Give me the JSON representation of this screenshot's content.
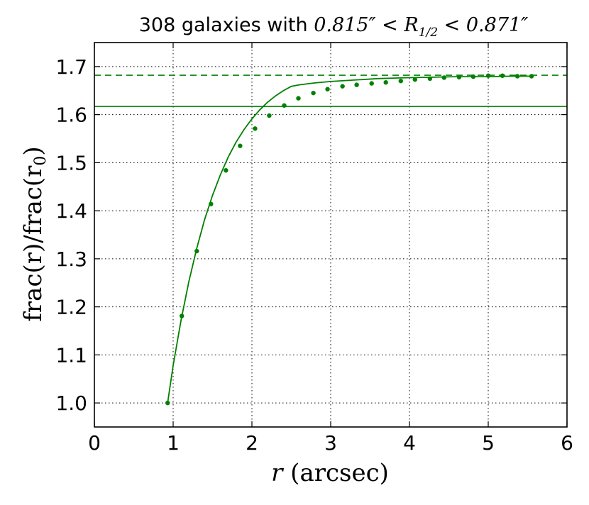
{
  "chart_data": {
    "type": "line",
    "title": {
      "prefix": "308 galaxies with ",
      "lower": "0.815″",
      "lt": " < ",
      "var_main": "R",
      "var_sub": "1/2",
      "upper": "0.871″"
    },
    "xlabel": {
      "var": "r",
      "text": " (arcsec)"
    },
    "ylabel": {
      "text": "frac(r)/frac(r",
      "sub": "0",
      "close": ")"
    },
    "xlim": [
      0,
      6
    ],
    "ylim": [
      0.95,
      1.75
    ],
    "xticks": [
      0,
      1,
      2,
      3,
      4,
      5,
      6
    ],
    "xtick_labels": [
      "0",
      "1",
      "2",
      "3",
      "4",
      "5",
      "6"
    ],
    "yticks": [
      1.0,
      1.1,
      1.2,
      1.3,
      1.4,
      1.5,
      1.6,
      1.7
    ],
    "ytick_labels": [
      "1.0",
      "1.1",
      "1.2",
      "1.3",
      "1.4",
      "1.5",
      "1.6",
      "1.7"
    ],
    "grid": true,
    "color": "#008000",
    "points": {
      "x": [
        0.93,
        1.11,
        1.3,
        1.48,
        1.67,
        1.85,
        2.04,
        2.22,
        2.41,
        2.59,
        2.78,
        2.96,
        3.15,
        3.33,
        3.52,
        3.7,
        3.89,
        4.07,
        4.26,
        4.44,
        4.63,
        4.81,
        5.0,
        5.18,
        5.37,
        5.55
      ],
      "y": [
        1.0,
        1.181,
        1.316,
        1.414,
        1.484,
        1.535,
        1.571,
        1.598,
        1.619,
        1.634,
        1.645,
        1.653,
        1.659,
        1.662,
        1.665,
        1.667,
        1.67,
        1.673,
        1.675,
        1.677,
        1.678,
        1.679,
        1.681,
        1.681,
        1.68,
        1.68
      ],
      "yerr": [
        0,
        0.002,
        0.002,
        0.002,
        0.002,
        0.002,
        0.002,
        0.002,
        0.002,
        0.003,
        0.003,
        0.003,
        0.003,
        0.003,
        0.003,
        0.003,
        0.003,
        0.003,
        0.004,
        0.004,
        0.004,
        0.004,
        0.004,
        0.004,
        0.004,
        0.004
      ]
    },
    "fit_curve": {
      "x": [
        0.93,
        1.0,
        1.1,
        1.2,
        1.3,
        1.4,
        1.5,
        1.6,
        1.7,
        1.8,
        1.9,
        2.0,
        2.1,
        2.2,
        2.3,
        2.4,
        2.5,
        2.6,
        2.8,
        3.0,
        3.2,
        3.4,
        3.6,
        3.8,
        4.0,
        4.3,
        4.6,
        5.0,
        5.3,
        5.55
      ],
      "y": [
        1.0,
        1.078,
        1.172,
        1.253,
        1.322,
        1.382,
        1.432,
        1.475,
        1.512,
        1.543,
        1.569,
        1.591,
        1.61,
        1.626,
        1.639,
        1.65,
        1.659,
        1.662,
        1.666,
        1.669,
        1.671,
        1.673,
        1.675,
        1.676,
        1.677,
        1.678,
        1.679,
        1.679,
        1.68,
        1.68
      ]
    },
    "hlines": [
      {
        "y": 1.682,
        "style": "dashed"
      },
      {
        "y": 1.617,
        "style": "solid"
      }
    ]
  }
}
